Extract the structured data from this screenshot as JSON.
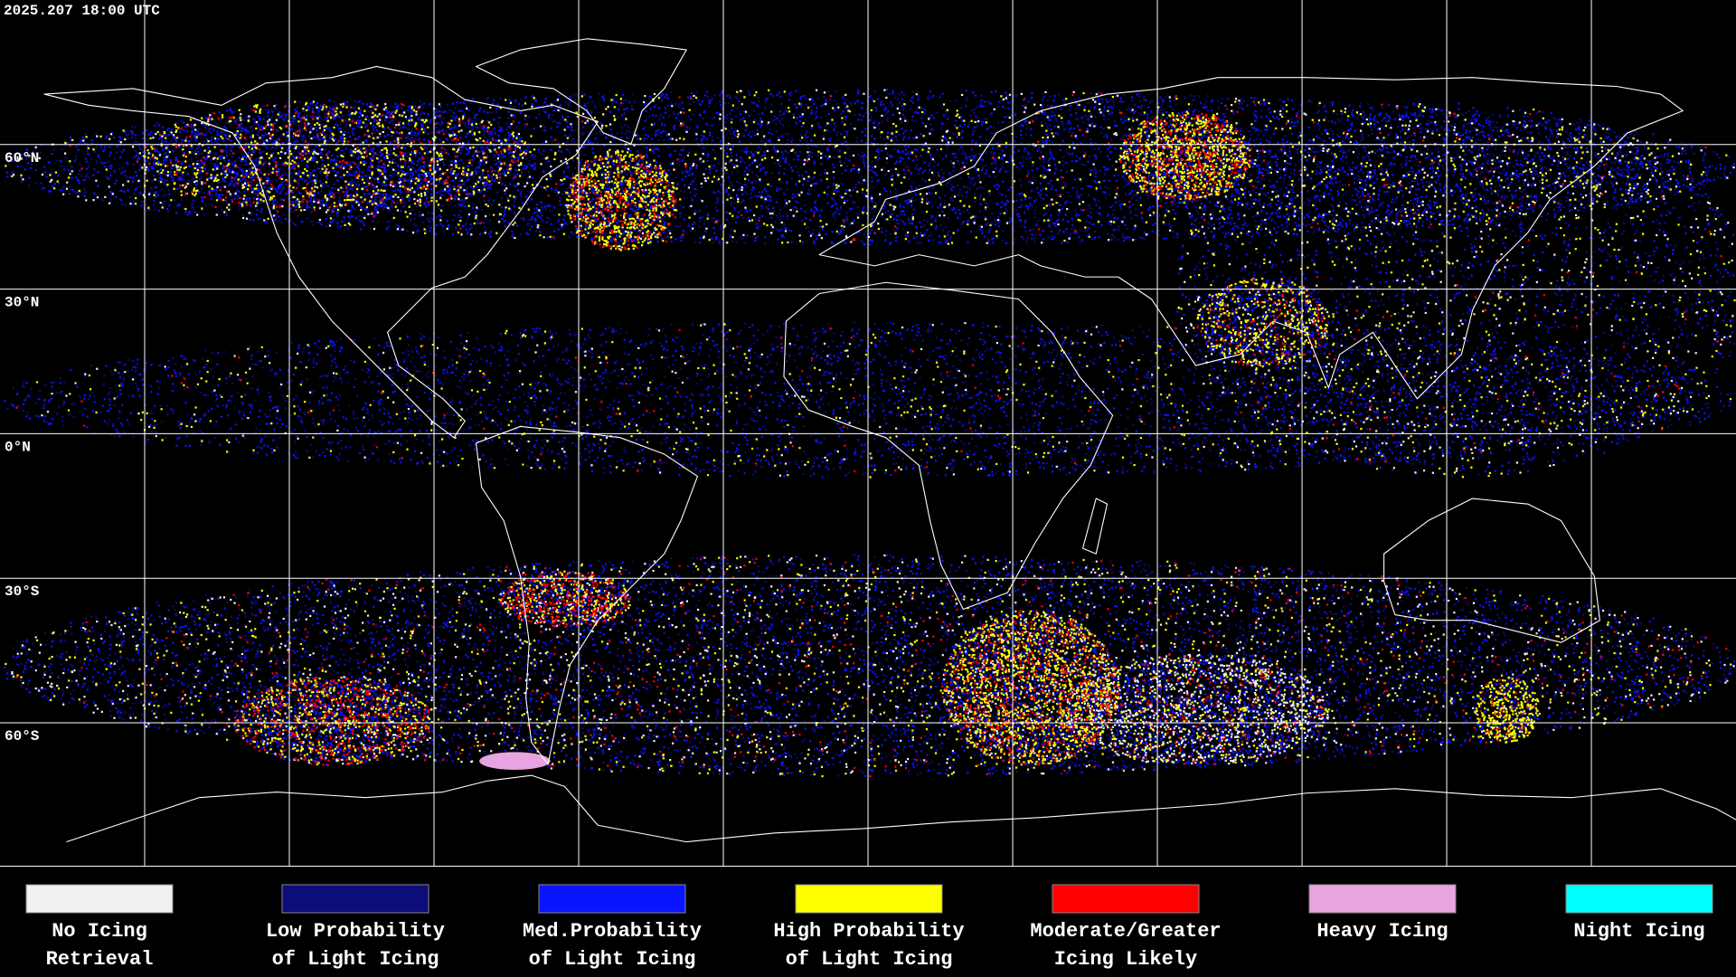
{
  "header": {
    "timestamp": "2025.207 18:00 UTC"
  },
  "map": {
    "latitude_labels": [
      "60°N",
      "30°N",
      "0°N",
      "30°S",
      "60°S"
    ]
  },
  "legend": [
    {
      "label_lines": [
        "No Icing",
        "Retrieval"
      ],
      "color": "#f0f0f0"
    },
    {
      "label_lines": [
        "Low Probability",
        "of Light Icing"
      ],
      "color": "#0c0c7a"
    },
    {
      "label_lines": [
        "Med.Probability",
        "of Light Icing"
      ],
      "color": "#0a14ff"
    },
    {
      "label_lines": [
        "High Probability",
        "of Light Icing"
      ],
      "color": "#ffff00"
    },
    {
      "label_lines": [
        "Moderate/Greater",
        "Icing Likely"
      ],
      "color": "#ff0000"
    },
    {
      "label_lines": [
        "Heavy Icing"
      ],
      "color": "#e8a4e0"
    },
    {
      "label_lines": [
        "Night Icing"
      ],
      "color": "#00ffff"
    }
  ]
}
